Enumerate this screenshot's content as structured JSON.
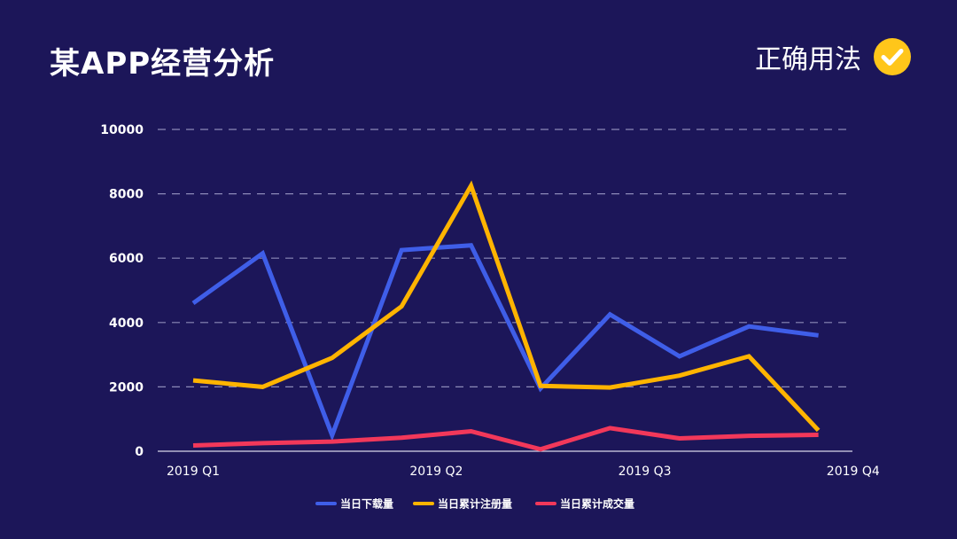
{
  "header": {
    "title": "某APP经营分析",
    "badge_label": "正确用法",
    "badge_icon": "check-circle-icon",
    "badge_color": "#ffc61a"
  },
  "chart_data": {
    "type": "line",
    "title": "",
    "xlabel": "",
    "ylabel": "",
    "ylim": [
      0,
      10000
    ],
    "yticks": [
      0,
      2000,
      4000,
      6000,
      8000,
      10000
    ],
    "grid": true,
    "legend_position": "bottom-center",
    "x_tick_labels": [
      {
        "index": 0,
        "label": "2019 Q1"
      },
      {
        "index": 3.5,
        "label": "2019 Q2"
      },
      {
        "index": 6.5,
        "label": "2019 Q3"
      },
      {
        "index": 9.5,
        "label": "2019 Q4"
      }
    ],
    "point_count": 10,
    "series": [
      {
        "name": "当日下载量",
        "color": "#3f5ee8",
        "values": [
          4600,
          6150,
          500,
          6250,
          6400,
          1950,
          4250,
          2950,
          3880,
          3600
        ]
      },
      {
        "name": "当日累计注册量",
        "color": "#ffb400",
        "values": [
          2200,
          2000,
          2900,
          4500,
          8250,
          2030,
          1980,
          2350,
          2950,
          650
        ]
      },
      {
        "name": "当日累计成交量",
        "color": "#f2385a",
        "values": [
          180,
          250,
          300,
          420,
          620,
          60,
          720,
          400,
          480,
          510
        ]
      }
    ]
  }
}
